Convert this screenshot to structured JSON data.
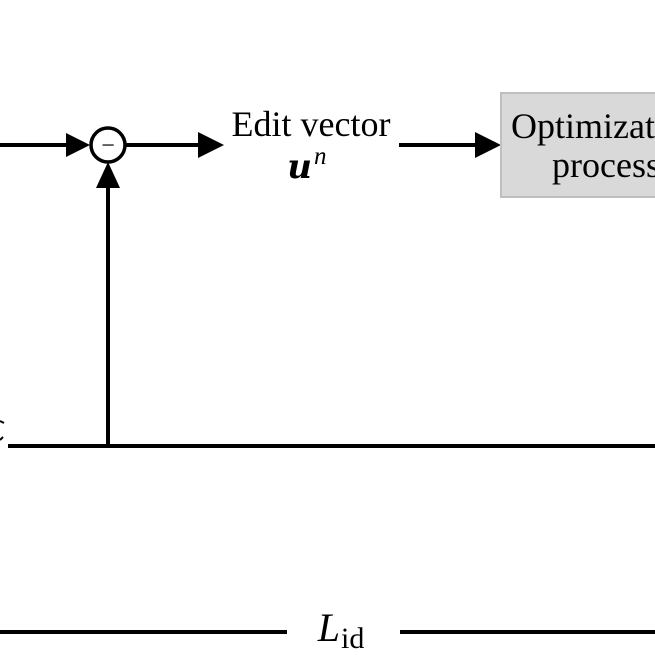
{
  "edit_vector": {
    "line1": "Edit vector",
    "symbol": "u",
    "superscript": "n"
  },
  "optimization_box": {
    "line1": "Optimizat",
    "line2": "process",
    "fill": "#d9d9d9",
    "stroke": "#bfbfbf"
  },
  "loss": {
    "symbol": "L",
    "subscript": "id"
  },
  "summing_junction": {
    "sign": "−"
  },
  "colors": {
    "line": "#000000",
    "background": "#ffffff"
  }
}
